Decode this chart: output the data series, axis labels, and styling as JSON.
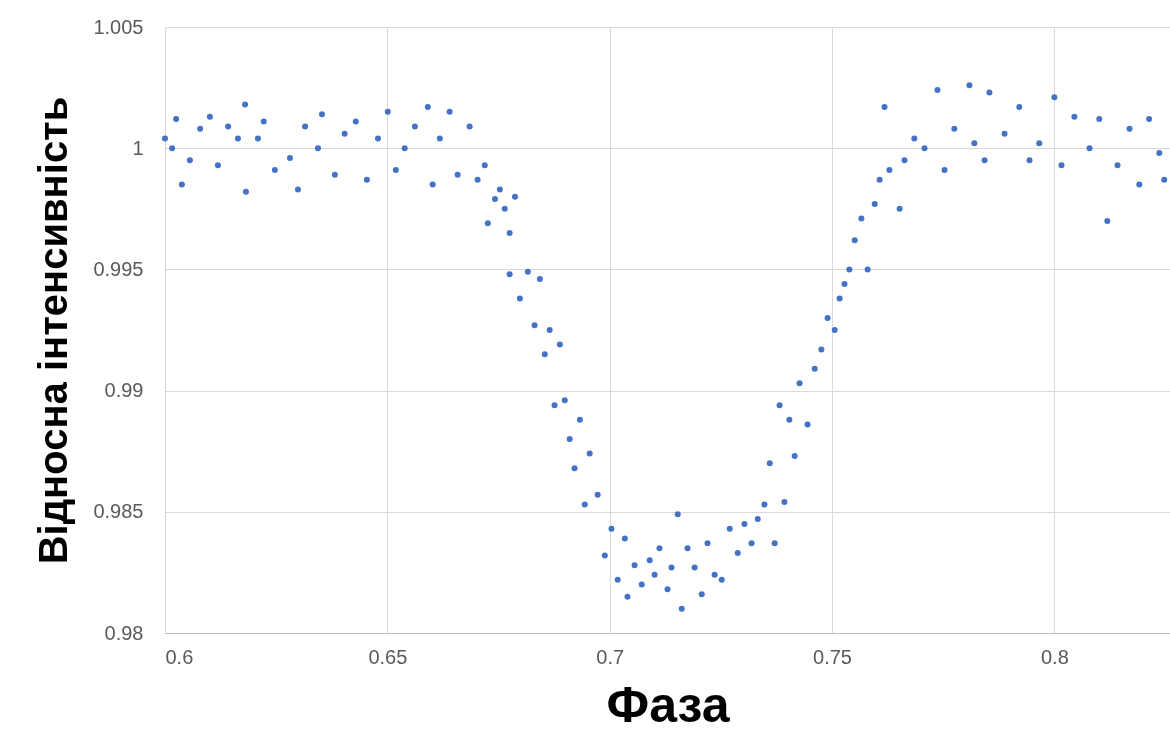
{
  "chart_data": {
    "type": "scatter",
    "xlabel": "Фаза",
    "ylabel": "Відносна інтенсивність",
    "xlim": [
      0.6,
      0.826
    ],
    "xticks": [
      0.6,
      0.65,
      0.7,
      0.75,
      0.8
    ],
    "ylim": [
      0.98,
      1.005
    ],
    "yticks": [
      0.98,
      0.985,
      0.99,
      0.995,
      1,
      1.005
    ],
    "grid": true,
    "marker": "circle",
    "series": [
      {
        "color": "#4472c4",
        "x": [
          0.6,
          0.6016,
          0.6025,
          0.6038,
          0.6056,
          0.6079,
          0.6101,
          0.6119,
          0.6142,
          0.6164,
          0.618,
          0.6182,
          0.6209,
          0.6222,
          0.6247,
          0.6281,
          0.6299,
          0.6315,
          0.6344,
          0.6353,
          0.6382,
          0.6404,
          0.6429,
          0.6454,
          0.6479,
          0.6501,
          0.6519,
          0.6539,
          0.6562,
          0.6591,
          0.6602,
          0.6618,
          0.664,
          0.6658,
          0.6685,
          0.6703,
          0.6719,
          0.6726,
          0.6742,
          0.6753,
          0.6764,
          0.6775,
          0.6787,
          0.6775,
          0.6798,
          0.6816,
          0.6831,
          0.6843,
          0.6854,
          0.6865,
          0.6876,
          0.6888,
          0.6899,
          0.691,
          0.6921,
          0.6933,
          0.6944,
          0.6955,
          0.6973,
          0.6989,
          0.7004,
          0.7018,
          0.7034,
          0.704,
          0.7056,
          0.7072,
          0.709,
          0.7101,
          0.7112,
          0.713,
          0.7139,
          0.7153,
          0.7162,
          0.7175,
          0.7191,
          0.7207,
          0.722,
          0.7236,
          0.7252,
          0.727,
          0.7288,
          0.7303,
          0.7319,
          0.7333,
          0.7348,
          0.736,
          0.7371,
          0.7382,
          0.7393,
          0.7404,
          0.7416,
          0.7427,
          0.7445,
          0.7461,
          0.7476,
          0.749,
          0.7506,
          0.7517,
          0.7528,
          0.7539,
          0.7551,
          0.7566,
          0.758,
          0.7596,
          0.7607,
          0.7618,
          0.7629,
          0.7652,
          0.7663,
          0.7685,
          0.7708,
          0.7737,
          0.7753,
          0.7775,
          0.7809,
          0.782,
          0.7843,
          0.7854,
          0.7888,
          0.7921,
          0.7944,
          0.7966,
          0.8,
          0.8016,
          0.8045,
          0.8079,
          0.8101,
          0.8119,
          0.8142,
          0.8169,
          0.8191,
          0.8213,
          0.8236,
          0.8247
        ],
        "values": [
          1.0004,
          1.0,
          1.0012,
          0.9985,
          0.9995,
          1.0008,
          1.0013,
          0.9993,
          1.0009,
          1.0004,
          1.0018,
          0.9982,
          1.0004,
          1.0011,
          0.9991,
          0.9996,
          0.9983,
          1.0009,
          1.0,
          1.0014,
          0.9989,
          1.0006,
          1.0011,
          0.9987,
          1.0004,
          1.0015,
          0.9991,
          1.0,
          1.0009,
          1.0017,
          0.9985,
          1.0004,
          1.0015,
          0.9989,
          1.0009,
          0.9987,
          0.9993,
          0.9969,
          0.9979,
          0.9983,
          0.9975,
          0.9965,
          0.998,
          0.9948,
          0.9938,
          0.9949,
          0.9927,
          0.9946,
          0.9915,
          0.9925,
          0.9894,
          0.9919,
          0.9896,
          0.988,
          0.9868,
          0.9888,
          0.9853,
          0.9874,
          0.9857,
          0.9832,
          0.9843,
          0.9822,
          0.9839,
          0.9815,
          0.9828,
          0.982,
          0.983,
          0.9824,
          0.9835,
          0.9818,
          0.9827,
          0.9849,
          0.981,
          0.9835,
          0.9827,
          0.9816,
          0.9837,
          0.9824,
          0.9822,
          0.9843,
          0.9833,
          0.9845,
          0.9837,
          0.9847,
          0.9853,
          0.987,
          0.9837,
          0.9894,
          0.9854,
          0.9888,
          0.9873,
          0.9903,
          0.9886,
          0.9909,
          0.9917,
          0.993,
          0.9925,
          0.9938,
          0.9944,
          0.995,
          0.9962,
          0.9971,
          0.995,
          0.9977,
          0.9987,
          1.0017,
          0.9991,
          0.9975,
          0.9995,
          1.0004,
          1.0,
          1.0024,
          0.9991,
          1.0008,
          1.0026,
          1.0002,
          0.9995,
          1.0023,
          1.0006,
          1.0017,
          0.9995,
          1.0002,
          1.0021,
          0.9993,
          1.0013,
          1.0,
          1.0012,
          0.997,
          0.9993,
          1.0008,
          0.9985,
          1.0012,
          0.9998,
          0.9987
        ]
      }
    ]
  }
}
